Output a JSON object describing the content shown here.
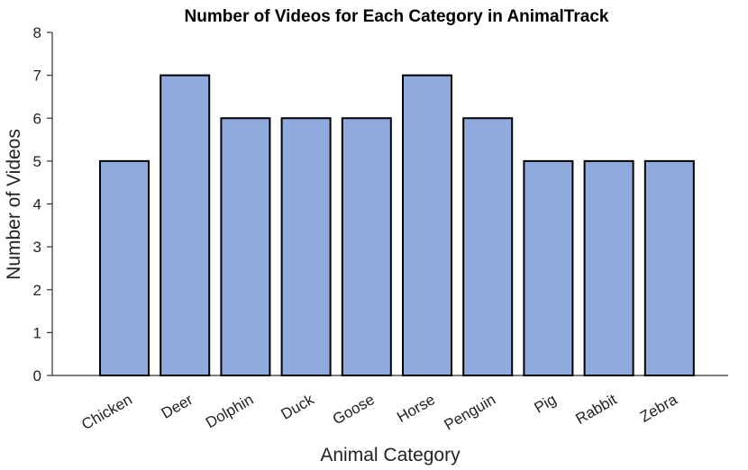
{
  "chart_data": {
    "type": "bar",
    "title": "Number of Videos for Each Category in AnimalTrack",
    "x_label": "Animal Category",
    "y_label": "Number of Videos",
    "categories": [
      "Chicken",
      "Deer",
      "Dolphin",
      "Duck",
      "Goose",
      "Horse",
      "Penguin",
      "Pig",
      "Rabbit",
      "Zebra"
    ],
    "values": [
      5,
      7,
      6,
      6,
      6,
      7,
      6,
      5,
      5,
      5
    ],
    "color": "#8faadc",
    "ylim": [
      0,
      8
    ],
    "yticks": [
      0,
      1,
      2,
      3,
      4,
      5,
      6,
      7,
      8
    ],
    "grid": false
  }
}
